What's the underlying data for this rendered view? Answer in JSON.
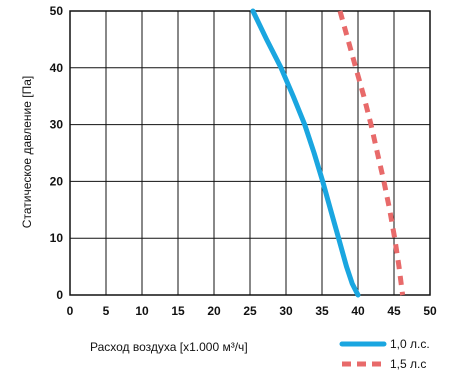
{
  "chart_data": {
    "type": "line",
    "xlabel": "Расход воздуха  [x1.000 м³/ч]",
    "ylabel": "Статическое давление  [Па]",
    "xlim": [
      0,
      50
    ],
    "ylim": [
      0,
      50
    ],
    "x_ticks": [
      "0",
      "5",
      "10",
      "15",
      "20",
      "25",
      "30",
      "35",
      "40",
      "45",
      "50"
    ],
    "y_ticks": [
      "0",
      "10",
      "20",
      "30",
      "40",
      "50"
    ],
    "grid": true,
    "legend_position": "bottom-right",
    "series": [
      {
        "name": "1,0 л.с.",
        "color": "#1aa6e0",
        "style": "solid",
        "x": [
          25.4,
          27.3,
          29.3,
          31.0,
          32.6,
          33.9,
          35.1,
          36.2,
          37.3,
          38.4,
          39.2,
          40.0
        ],
        "y": [
          50,
          45,
          40,
          35,
          30,
          25,
          20,
          15,
          10,
          5,
          2,
          0
        ]
      },
      {
        "name": "1,5 л.с",
        "color": "#e86a6a",
        "style": "dashed",
        "x": [
          37.5,
          38.6,
          39.7,
          40.8,
          41.8,
          42.7,
          43.6,
          44.4,
          45.1,
          45.7,
          46.2
        ],
        "y": [
          50,
          45,
          40,
          35,
          30,
          25,
          20,
          15,
          10,
          5,
          0
        ]
      }
    ]
  }
}
